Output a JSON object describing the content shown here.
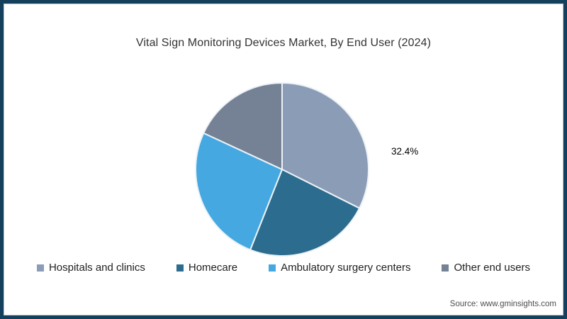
{
  "chart_data": {
    "type": "pie",
    "title": "Vital Sign Monitoring Devices Market, By End User (2024)",
    "start_angle": "top",
    "direction": "clockwise",
    "legend_position": "bottom",
    "slices": [
      {
        "label": "Hospitals and clinics",
        "value": 32.4,
        "color": "#8B9CB6",
        "data_label": "32.4%"
      },
      {
        "label": "Homecare",
        "value": 23.6,
        "color": "#2B6C8F",
        "data_label": ""
      },
      {
        "label": "Ambulatory surgery centers",
        "value": 25.9,
        "color": "#45A8E1",
        "data_label": ""
      },
      {
        "label": "Other end users",
        "value": 18.1,
        "color": "#758296",
        "data_label": ""
      }
    ],
    "visible_data_labels": [
      "32.4%"
    ],
    "source": "Source: www.gminsights.com"
  },
  "colors": {
    "border": "#14405E",
    "background": "#FFFFFF",
    "title_text": "#333333",
    "data_label_text": "#000000",
    "source_text": "#4D4D4D",
    "slice_divider": "#EDF2F6"
  }
}
